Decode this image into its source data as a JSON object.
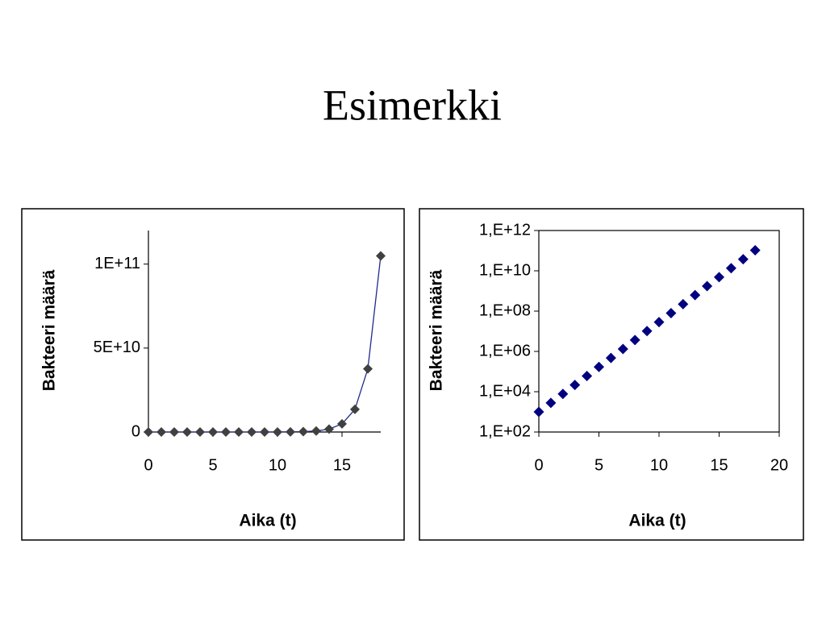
{
  "slide_title": "Esimerkki",
  "chart_data": [
    {
      "type": "line",
      "xlabel": "Aika (t)",
      "ylabel": "Bakteeri määrä",
      "x": [
        0,
        1,
        2,
        3,
        4,
        5,
        6,
        7,
        8,
        9,
        10,
        11,
        12,
        13,
        14,
        15,
        16,
        17,
        18
      ],
      "values": [
        1000,
        2790,
        7784,
        21718,
        60594,
        169100,
        471700,
        1316000,
        3671000,
        10240000,
        28580000,
        79730000,
        222400000,
        620700000,
        1732000000,
        4831000000,
        13480000000,
        37610000000,
        104900000000
      ],
      "color": "#1f2a8a",
      "marker_color": "#404040",
      "xlim": [
        0,
        18
      ],
      "xticks": [
        0,
        5,
        10,
        15
      ],
      "ylim": [
        0,
        120000000000
      ],
      "yticks": [
        0,
        {
          "value": 50000000000,
          "label": "5E+10"
        },
        {
          "value": 100000000000,
          "label": "1E+11"
        }
      ],
      "frame": false
    },
    {
      "type": "scatter",
      "xlabel": "Aika (t)",
      "ylabel": "Bakteeri määrä",
      "log_y": true,
      "x": [
        0,
        1,
        2,
        3,
        4,
        5,
        6,
        7,
        8,
        9,
        10,
        11,
        12,
        13,
        14,
        15,
        16,
        17,
        18
      ],
      "values": [
        1000,
        2790,
        7784,
        21718,
        60594,
        169100,
        471700,
        1316000,
        3671000,
        10240000,
        28580000,
        79730000,
        222400000,
        620700000,
        1732000000,
        4831000000,
        13480000000,
        37610000000,
        104900000000
      ],
      "marker_color": "#000080",
      "xlim": [
        0,
        20
      ],
      "xticks": [
        0,
        5,
        10,
        15,
        20
      ],
      "ylim": [
        100,
        1000000000000
      ],
      "yticks": [
        {
          "value": 100,
          "label": "1,E+02"
        },
        {
          "value": 10000,
          "label": "1,E+04"
        },
        {
          "value": 1000000,
          "label": "1,E+06"
        },
        {
          "value": 100000000,
          "label": "1,E+08"
        },
        {
          "value": 10000000000,
          "label": "1,E+10"
        },
        {
          "value": 1000000000000,
          "label": "1,E+12"
        }
      ],
      "frame": true
    }
  ]
}
